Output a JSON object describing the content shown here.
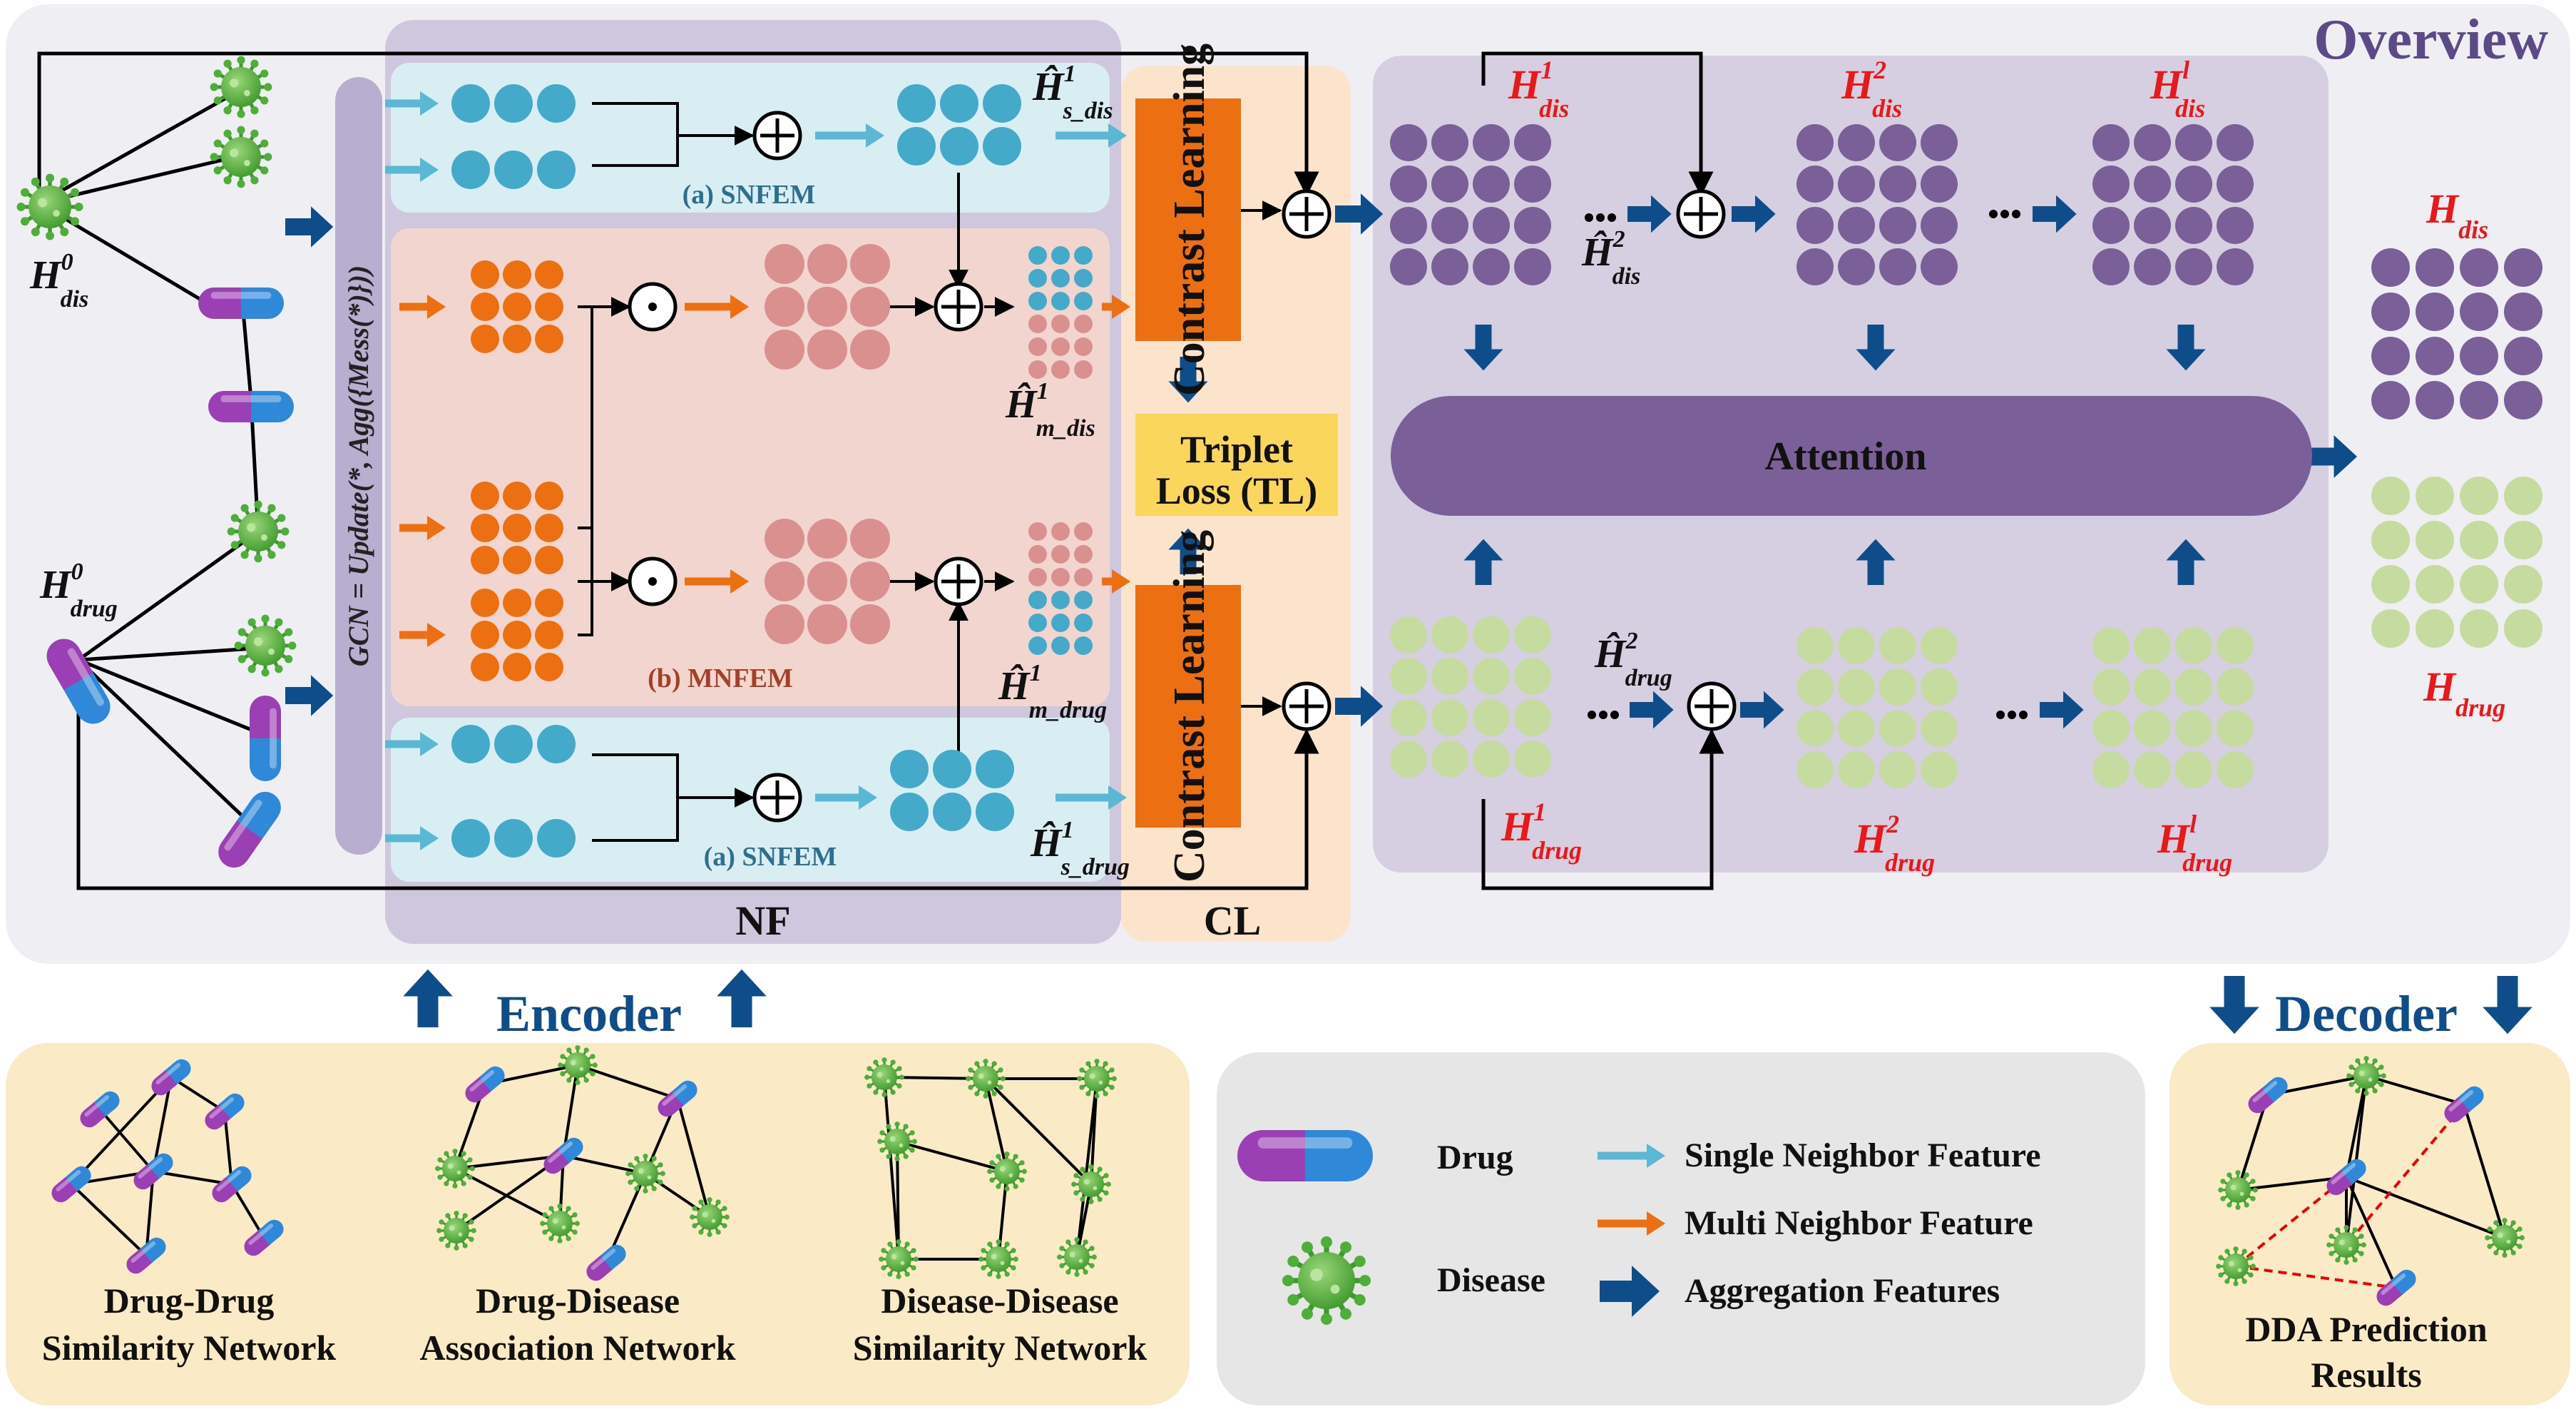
{
  "overview": {
    "title": "Overview"
  },
  "modules": {
    "snfem_top": "(a) SNFEM",
    "snfem_bottom": "(a) SNFEM",
    "mnfem": "(b) MNFEM",
    "nf": "NF",
    "cl": "CL"
  },
  "gcn": {
    "formula": "GCN = Update(*, Agg({Mess(*)}))"
  },
  "contrast": {
    "top": "Contrast Learning",
    "bottom": "Contrast Learning"
  },
  "triplet": {
    "line1": "Triplet",
    "line2": "Loss (TL)"
  },
  "attention": {
    "label": "Attention"
  },
  "encoder": {
    "label": "Encoder"
  },
  "decoder": {
    "label": "Decoder"
  },
  "math": {
    "H0_dis": {
      "base": "H",
      "sup": "0",
      "sub": "dis"
    },
    "H0_drug": {
      "base": "H",
      "sup": "0",
      "sub": "drug"
    },
    "Hs_dis": {
      "base": "Ĥ",
      "sup": "1",
      "sub": "s_dis"
    },
    "Hm_dis": {
      "base": "Ĥ",
      "sup": "1",
      "sub": "m_dis"
    },
    "Hm_drug": {
      "base": "Ĥ",
      "sup": "1",
      "sub": "m_drug"
    },
    "Hs_drug": {
      "base": "Ĥ",
      "sup": "1",
      "sub": "s_drug"
    },
    "H2hat_dis": {
      "base": "Ĥ",
      "sup": "2",
      "sub": "dis"
    },
    "H2hat_drug": {
      "base": "Ĥ",
      "sup": "2",
      "sub": "drug"
    },
    "dis_layers": [
      {
        "base": "H",
        "sup": "1",
        "sub": "dis"
      },
      {
        "base": "H",
        "sup": "2",
        "sub": "dis"
      },
      {
        "base": "H",
        "sup": "l",
        "sub": "dis"
      }
    ],
    "drug_layers": [
      {
        "base": "H",
        "sup": "1",
        "sub": "drug"
      },
      {
        "base": "H",
        "sup": "2",
        "sub": "drug"
      },
      {
        "base": "H",
        "sup": "l",
        "sub": "drug"
      }
    ],
    "H_dis": {
      "base": "H",
      "sub": "dis"
    },
    "H_drug": {
      "base": "H",
      "sub": "drug"
    }
  },
  "networks": {
    "drug_drug": {
      "line1": "Drug-Drug",
      "line2": "Similarity Network"
    },
    "drug_disease": {
      "line1": "Drug-Disease",
      "line2": "Association Network"
    },
    "disease_disease": {
      "line1": "Disease-Disease",
      "line2": "Similarity Network"
    },
    "prediction": {
      "line1": "DDA Prediction",
      "line2": "Results"
    }
  },
  "legend": {
    "drug": "Drug",
    "disease": "Disease",
    "single": "Single Neighbor  Feature",
    "multi": "Multi Neighbor  Feature",
    "aggregation": "Aggregation Features"
  },
  "colors": {
    "teal": "#45a9c9",
    "orange": "#ec7012",
    "pink": "#d9908e",
    "purple": "#7a5f98",
    "green": "#c6dba0",
    "navy": "#0e4d8a",
    "red_label": "#e8191b",
    "light_blue_arrow": "#5ab8d4"
  }
}
